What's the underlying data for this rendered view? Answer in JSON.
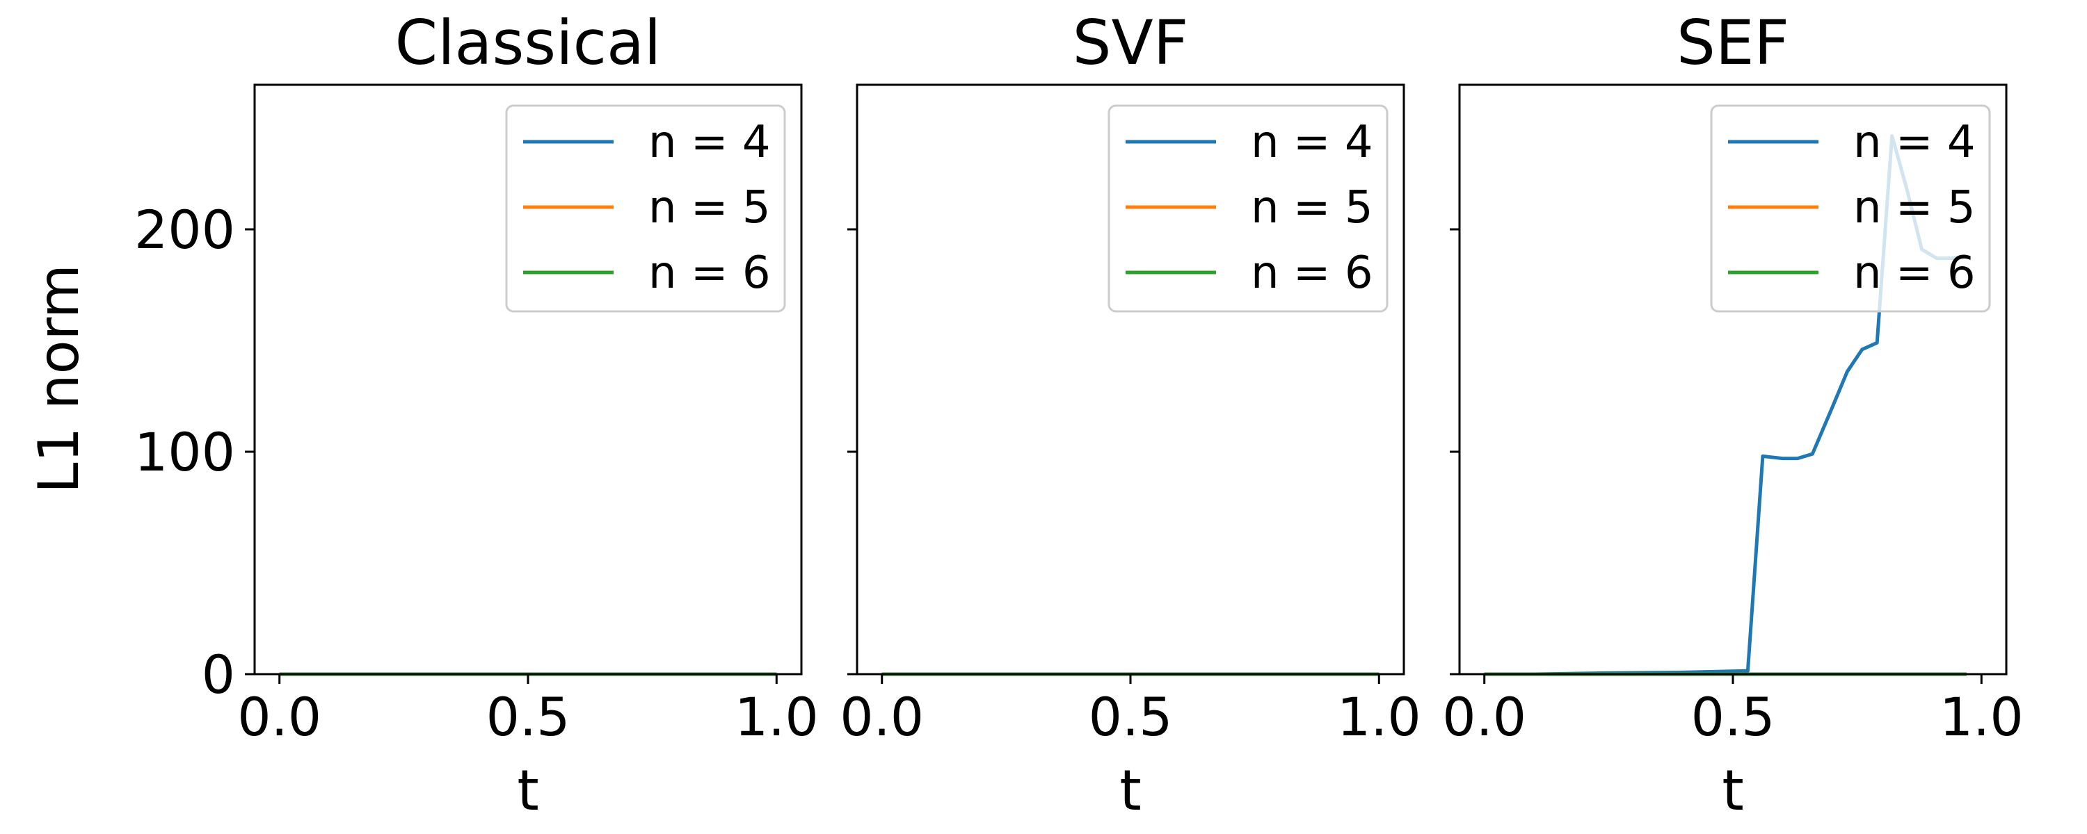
{
  "figure": {
    "ylabel": "L1 norm",
    "legend_location": "upper right"
  },
  "colors": {
    "n4": "#1f77b4",
    "n5": "#ff7f0e",
    "n6": "#2ca02c"
  },
  "chart_data": [
    {
      "type": "line",
      "title": "Classical",
      "xlabel": "t",
      "ylabel": "L1 norm",
      "xlim": [
        -0.05,
        1.05
      ],
      "ylim": [
        0,
        265
      ],
      "xticks": [
        "0.0",
        "0.5",
        "1.0"
      ],
      "yticks": [
        "0",
        "100",
        "200"
      ],
      "grid": false,
      "legend": "upper right",
      "series": [
        {
          "name": "n = 4",
          "color": "#1f77b4",
          "x": [
            0.0,
            0.25,
            0.5,
            0.75,
            1.0
          ],
          "y": [
            0,
            0,
            0,
            0,
            0
          ]
        },
        {
          "name": "n = 5",
          "color": "#ff7f0e",
          "x": [
            0.0,
            0.25,
            0.5,
            0.75,
            1.0
          ],
          "y": [
            0,
            0,
            0,
            0,
            0
          ]
        },
        {
          "name": "n = 6",
          "color": "#2ca02c",
          "x": [
            0.0,
            0.25,
            0.5,
            0.75,
            1.0
          ],
          "y": [
            0,
            0,
            0,
            0,
            0
          ]
        }
      ]
    },
    {
      "type": "line",
      "title": "SVF",
      "xlabel": "t",
      "ylabel": "",
      "xlim": [
        -0.05,
        1.05
      ],
      "ylim": [
        0,
        265
      ],
      "xticks": [
        "0.0",
        "0.5",
        "1.0"
      ],
      "yticks": [
        "",
        "",
        ""
      ],
      "grid": false,
      "legend": "upper right",
      "series": [
        {
          "name": "n = 4",
          "color": "#1f77b4",
          "x": [
            0.0,
            0.25,
            0.5,
            0.75,
            1.0
          ],
          "y": [
            0,
            0,
            0,
            0,
            0
          ]
        },
        {
          "name": "n = 5",
          "color": "#ff7f0e",
          "x": [
            0.0,
            0.25,
            0.5,
            0.75,
            1.0
          ],
          "y": [
            0,
            0,
            0,
            0,
            0
          ]
        },
        {
          "name": "n = 6",
          "color": "#2ca02c",
          "x": [
            0.0,
            0.25,
            0.5,
            0.75,
            1.0
          ],
          "y": [
            0,
            0,
            0,
            0,
            0
          ]
        }
      ]
    },
    {
      "type": "line",
      "title": "SEF",
      "xlabel": "t",
      "ylabel": "",
      "xlim": [
        -0.05,
        1.05
      ],
      "ylim": [
        0,
        265
      ],
      "xticks": [
        "0.0",
        "0.5",
        "1.0"
      ],
      "yticks": [
        "",
        "",
        ""
      ],
      "grid": false,
      "legend": "upper right",
      "series": [
        {
          "name": "n = 4",
          "color": "#1f77b4",
          "x": [
            0.0,
            0.1,
            0.25,
            0.4,
            0.53,
            0.56,
            0.6,
            0.63,
            0.66,
            0.7,
            0.73,
            0.76,
            0.79,
            0.82,
            0.85,
            0.88,
            0.91,
            0.94,
            0.97
          ],
          "y": [
            0,
            0,
            0.5,
            0.8,
            1.5,
            98,
            97,
            97,
            99,
            120,
            136,
            146,
            149,
            242,
            218,
            191,
            187,
            187,
            188
          ]
        },
        {
          "name": "n = 5",
          "color": "#ff7f0e",
          "x": [
            0.0,
            0.25,
            0.5,
            0.75,
            0.97
          ],
          "y": [
            0,
            0,
            0,
            0,
            0
          ]
        },
        {
          "name": "n = 6",
          "color": "#2ca02c",
          "x": [
            0.0,
            0.25,
            0.5,
            0.75,
            0.97
          ],
          "y": [
            0,
            0,
            0,
            0,
            0
          ]
        }
      ]
    }
  ]
}
